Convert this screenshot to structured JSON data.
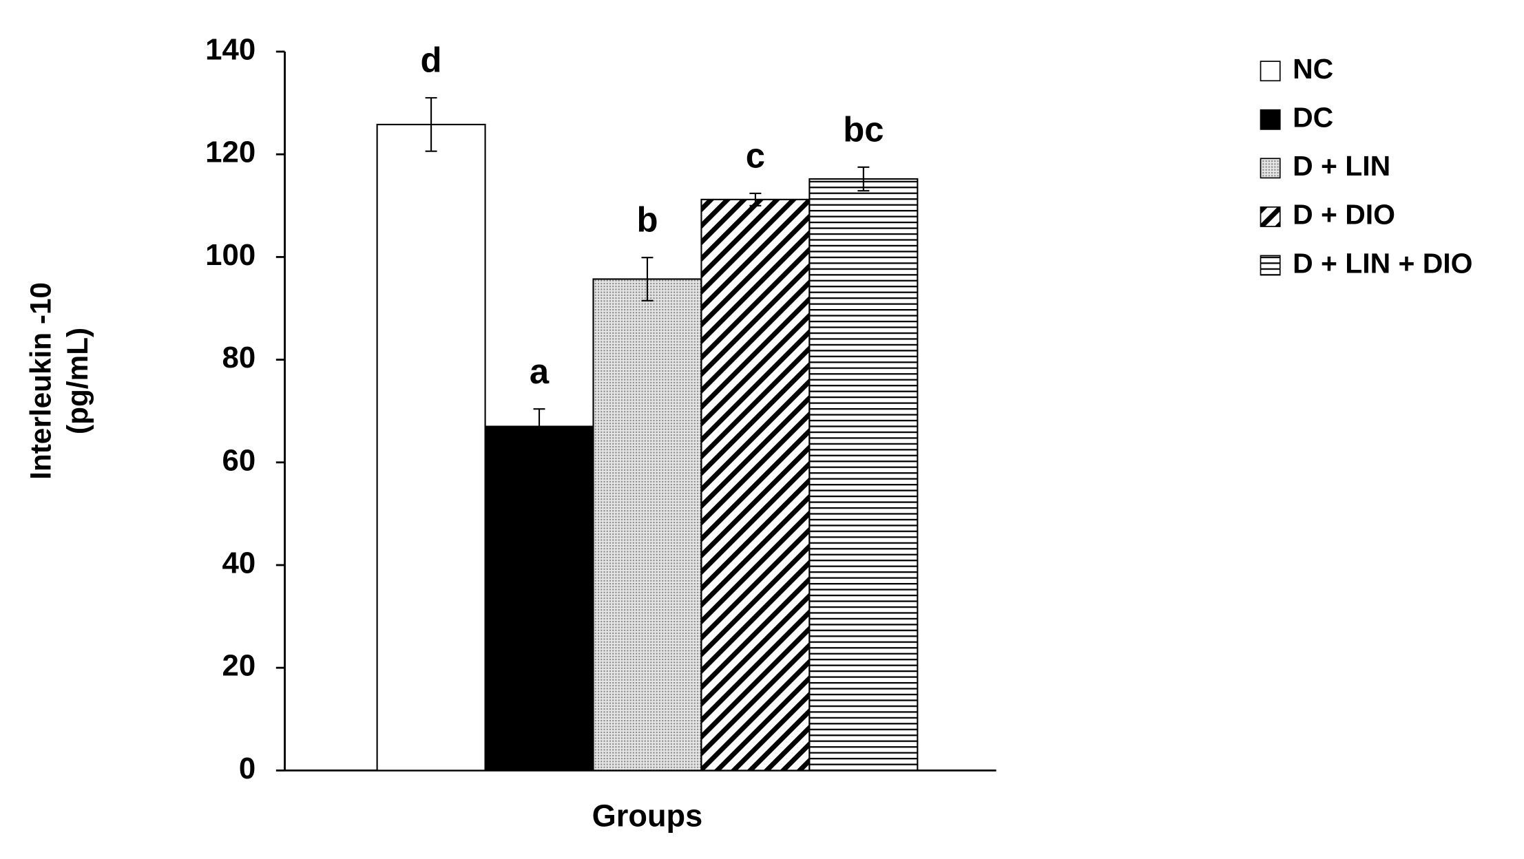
{
  "chart_data": {
    "type": "bar",
    "y_label": [
      "Interleukin -10",
      "(pg/mL)"
    ],
    "x_label": "Groups",
    "categories": [
      "NC",
      "DC",
      "D + LIN",
      "D + DIO",
      "D + LIN + DIO"
    ],
    "values": [
      125.8,
      67,
      95.7,
      111.2,
      115.2
    ],
    "errors": [
      5.2,
      3.4,
      4.2,
      1.2,
      2.3
    ],
    "significance_labels": [
      "d",
      "a",
      "b",
      "c",
      "bc"
    ],
    "patterns": [
      "none",
      "solid",
      "dots",
      "diagonal",
      "horizontal"
    ],
    "color": "#000000",
    "ylim": [
      0,
      140
    ],
    "yticks": [
      0,
      20,
      40,
      60,
      80,
      100,
      120,
      140
    ],
    "legend": "right"
  }
}
